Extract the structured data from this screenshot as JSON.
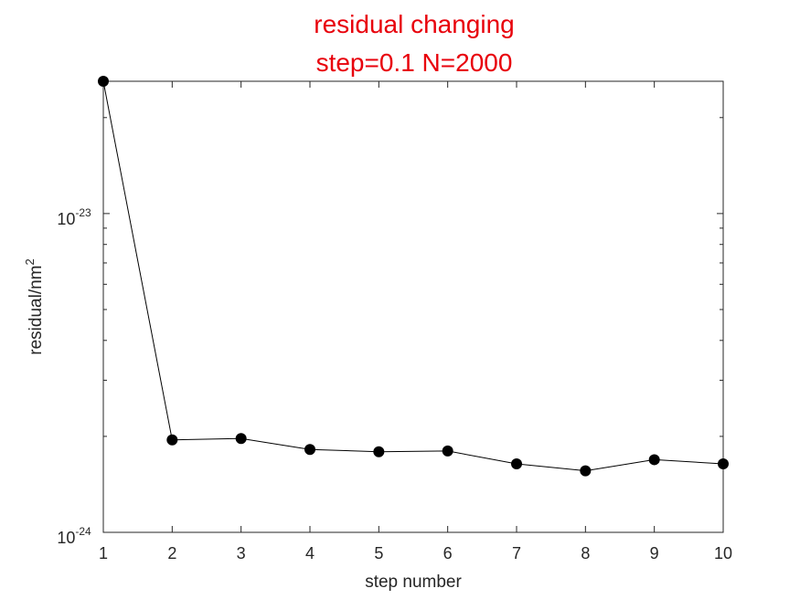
{
  "chart_data": {
    "type": "line",
    "title": [
      "residual changing",
      "step=0.1 N=2000"
    ],
    "title_color": "#e8000b",
    "xlabel": "step number",
    "ylabel": "residual/nm",
    "ylabel_superscript": "2",
    "x": [
      1,
      2,
      3,
      4,
      5,
      6,
      7,
      8,
      9,
      10
    ],
    "y": [
      2.6e-23,
      1.95e-24,
      1.97e-24,
      1.82e-24,
      1.79e-24,
      1.8e-24,
      1.64e-24,
      1.56e-24,
      1.69e-24,
      1.64e-24
    ],
    "xlim": [
      1,
      10
    ],
    "ylim": [
      1e-24,
      2.6e-23
    ],
    "yscale": "log",
    "xticks": [
      "1",
      "2",
      "3",
      "4",
      "5",
      "6",
      "7",
      "8",
      "9",
      "10"
    ],
    "yticks": [
      {
        "value": 1e-24,
        "base": "10",
        "exp": "-24"
      },
      {
        "value": 1e-23,
        "base": "10",
        "exp": "-23"
      }
    ],
    "grid": false,
    "line_color": "#000000",
    "marker": "filled-circle"
  }
}
